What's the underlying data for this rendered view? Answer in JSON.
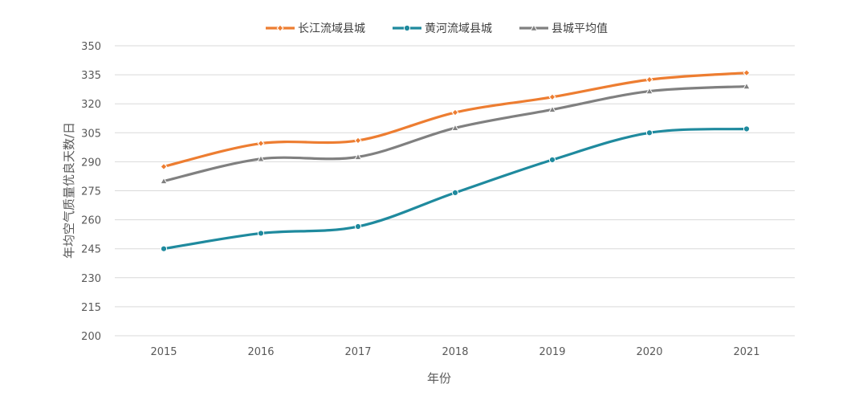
{
  "chart_data": {
    "type": "line",
    "x": [
      "2015",
      "2016",
      "2017",
      "2018",
      "2019",
      "2020",
      "2021"
    ],
    "series": [
      {
        "name": "长江流域县城",
        "color": "#ED7D31",
        "marker": "diamond",
        "values": [
          287.5,
          299.5,
          301,
          315.5,
          323.5,
          332.5,
          336
        ]
      },
      {
        "name": "黄河流域县城",
        "color": "#1F8A9E",
        "marker": "circle",
        "values": [
          245,
          253,
          256.5,
          274,
          291,
          305,
          307
        ]
      },
      {
        "name": "县城平均值",
        "color": "#808080",
        "marker": "triangle",
        "values": [
          280,
          291.5,
          292.5,
          307.5,
          317,
          326.5,
          329
        ]
      }
    ],
    "xlabel": "年份",
    "ylabel": "年均空气质量优良天数/日",
    "ylim": [
      200,
      350
    ],
    "yticks": [
      200,
      215,
      230,
      245,
      260,
      275,
      290,
      305,
      320,
      335,
      350
    ],
    "smooth": true,
    "grid": "horizontal",
    "legend_position": "top"
  }
}
